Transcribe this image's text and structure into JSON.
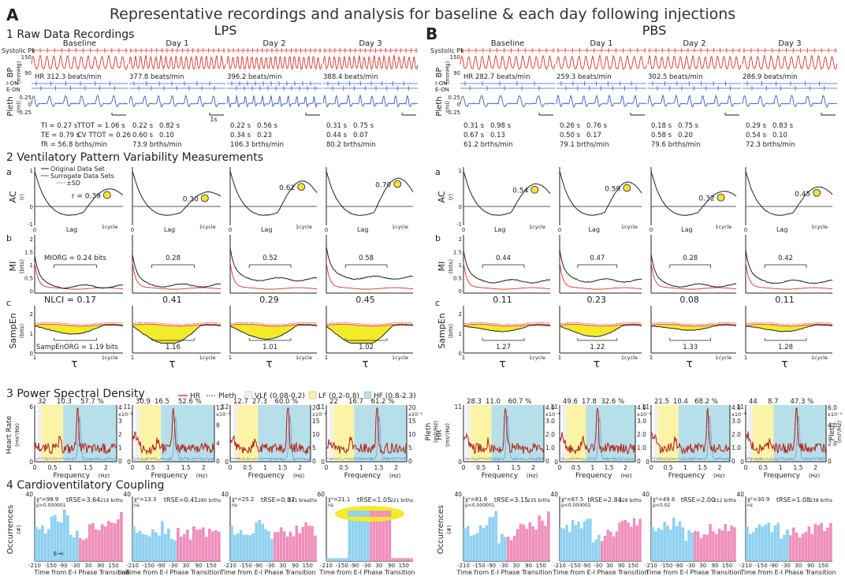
{
  "title": "Representative recordings and analysis for baseline & each day following injections",
  "panelA": "A",
  "panelB": "B",
  "groupA": "LPS",
  "groupB": "PBS",
  "s1": "1 Raw Data Recordings",
  "s2": "2 Ventilatory Pattern Variability Measurements",
  "s3": "3 Power Spectral Density",
  "s4": "4 Cardioventilatory Coupling",
  "days": [
    "Baseline",
    "Day 1",
    "Day 2",
    "Day 3"
  ],
  "raw": {
    "systolic_label": "Systolic Pk",
    "bp_label": "BP",
    "bp_unit": "(mmHg)",
    "bp_ticks": [
      "150",
      "90"
    ],
    "ion_label": "I-ON",
    "eon_label": "E-ON",
    "pleth_label": "Pleth",
    "pleth_unit": "(ml)",
    "pleth_ticks": [
      "0.25",
      "0",
      "-0.25"
    ],
    "scale_bar": "1s",
    "lps_hr": [
      "HR 312.3 beats/min",
      "377.8 beats/min",
      "396.2 beats/min",
      "388.4 beats/min"
    ],
    "pbs_hr": [
      "HR 282.7 beats/min",
      "259.3 beats/min",
      "302.5 beats/min",
      "286.9 beats/min"
    ],
    "lps_params": [
      [
        "TI = 0.27 s",
        "TTOT = 1.06 s",
        "TE = 0.79 s",
        "CV TTOT = 0.26",
        "fR = 56.8 brths/min"
      ],
      [
        "0.22 s",
        "0.82 s",
        "0.60 s",
        "0.10",
        "73.9 brths/min"
      ],
      [
        "0.22 s",
        "0.56 s",
        "0.34 s",
        "0.23",
        "106.3 brths/min"
      ],
      [
        "0.31 s",
        "0.75 s",
        "0.44 s",
        "0.07",
        "80.2 brths/min"
      ]
    ],
    "pbs_params": [
      [
        "0.31 s",
        "0.98 s",
        "0.67 s",
        "0.13",
        "61.2 brths/min"
      ],
      [
        "0.26 s",
        "0.76 s",
        "0.50 s",
        "0.17",
        "79.1 brths/min"
      ],
      [
        "0.18 s",
        "0.75 s",
        "0.58 s",
        "0.20",
        "79.6 brths/min"
      ],
      [
        "0.29 s",
        "0.83 s",
        "0.54 s",
        "0.10",
        "72.3 brths/min"
      ]
    ]
  },
  "vpv": {
    "a": "a",
    "b": "b",
    "c": "c",
    "ac_label": "AC",
    "ac_unit": "(r)",
    "ac_ticks": [
      "1",
      "0",
      "-1"
    ],
    "lag_label": "Lag",
    "cycle_label": "1cycle",
    "legend": [
      "Original Data Set",
      "Surrogate Data Sets",
      "±SD"
    ],
    "lps_ac": [
      "r = 0.39",
      "0.30",
      "0.62",
      "0.70"
    ],
    "pbs_ac": [
      "0.54",
      "0.59",
      "0.32",
      "0.45"
    ],
    "mi_label": "MI",
    "mi_unit": "(bits)",
    "mi_ticks": [
      "2",
      "1.5",
      "1",
      "0.5",
      "0"
    ],
    "lps_mi": [
      "MIORG = 0.24 bits",
      "0.28",
      "0.52",
      "0.58"
    ],
    "pbs_mi": [
      "0.44",
      "0.47",
      "0.28",
      "0.42"
    ],
    "se_label": "SampEn",
    "se_unit": "(bits)",
    "se_ticks": [
      "2",
      "1",
      "0"
    ],
    "tau": "τ",
    "tau_ticks": [
      "1",
      "1cycle"
    ],
    "lps_nlci": [
      "NLCI = 0.17",
      "0.41",
      "0.29",
      "0.45"
    ],
    "pbs_nlci": [
      "0.11",
      "0.23",
      "0.08",
      "0.11"
    ],
    "lps_se": [
      "SampEnORG = 1.19 bits",
      "1.16",
      "1.01",
      "1.02"
    ],
    "pbs_se": [
      "1.27",
      "1.22",
      "1.33",
      "1.28"
    ]
  },
  "psd": {
    "legend": [
      "HR",
      "Pleth",
      "VLF (0.08-0.2)",
      "LF (0.2-0.8)",
      "HF (0.8-2.3)"
    ],
    "hr_label_lps": "Heart Rate",
    "hr_unit_lps": "(ms²/Hz)",
    "hr_label_pbs": "HR",
    "hr_unit_pbs": "(ms²/Hz)",
    "pleth_label": "Pleth",
    "pleth_unit": "(ml²/Hz)",
    "xlabel": "Frequency",
    "xunit": "(Hz)",
    "xticks": [
      "0",
      "0.5",
      "1",
      "1.5",
      "2"
    ],
    "lps_y": [
      "6",
      "11",
      "12",
      "11"
    ],
    "lps_pcts": [
      [
        "32",
        "10.3",
        "57.7 %"
      ],
      [
        "30.9",
        "16.5",
        "52.6 %"
      ],
      [
        "12.7",
        "27.3",
        "60.0 %"
      ],
      [
        "22",
        "16.7",
        "61.2 %"
      ]
    ],
    "lps_right": [
      [
        "4",
        "3",
        "2",
        "1",
        "0"
      ],
      [
        "12",
        "8",
        "4",
        "0"
      ],
      [
        "20",
        "15",
        "10",
        "5",
        "0"
      ],
      [
        "20",
        "15",
        "10",
        "5",
        "0"
      ]
    ],
    "lps_rmult": [
      "x10⁻²",
      "x10⁻²",
      "x10⁻²",
      "x10⁻²"
    ],
    "pbs_y": [
      "11",
      "11",
      "11",
      "11"
    ],
    "pbs_pcts": [
      [
        "28.3",
        "11.0",
        "60.7 %"
      ],
      [
        "49.6",
        "17.8",
        "32.6 %"
      ],
      [
        "21.5",
        "10.4",
        "68.2 %"
      ],
      [
        "44",
        "8.7",
        "47.3 %"
      ]
    ],
    "pbs_right": [
      [
        "4.0",
        "3.0",
        "2.0",
        "1.0",
        "0"
      ],
      [
        "4.0",
        "3.0",
        "2.0",
        "1.0",
        "0"
      ],
      [
        "4.0",
        "3.0",
        "2.0",
        "1.0",
        "0"
      ],
      [
        "6.0",
        "4.0",
        "2.0",
        "0"
      ]
    ],
    "pbs_rmult": [
      "x10⁻⁴",
      "x10⁻⁴",
      "x10⁻⁴",
      "x10⁻⁴"
    ]
  },
  "cvc": {
    "ylabel": "Occurrences",
    "yunit": "(#)",
    "xlabel": "Time from E-I Phase Transition",
    "xunit": "(ms)",
    "xticks": [
      "-210",
      "-150",
      "-90",
      "-30",
      "30",
      "90",
      "150"
    ],
    "ei_arrow": "E→I",
    "lps": [
      {
        "chi": "χ²=99.9",
        "p": "p>0.000001",
        "trse": "tRSE=3.64",
        "n": "216 brths",
        "ymax": "40"
      },
      {
        "chi": "χ²=13.3",
        "p": "ns",
        "trse": "tRSE=0.41",
        "n": "280 brths",
        "ymax": "40"
      },
      {
        "chi": "χ²=25.2",
        "p": "ns",
        "trse": "tRSE=0.87",
        "n": "241 breaths",
        "ymax": "40"
      },
      {
        "chi": "χ²=21.1",
        "p": "ns",
        "trse": "tRSE=1.05",
        "n": "221 brths",
        "ymax": "60"
      }
    ],
    "pbs": [
      {
        "chi": "χ²=81.6",
        "p": "p<0.000001",
        "trse": "tRSE=3.15",
        "n": "235 brths",
        "ymax": "40"
      },
      {
        "chi": "χ²=67.5",
        "p": "p<0.000001",
        "trse": "tRSE=2.84",
        "n": "228 brths",
        "ymax": "40"
      },
      {
        "chi": "χ²=49.6",
        "p": "p<0.02",
        "trse": "tRSE=2.00",
        "n": "212 brths",
        "ymax": "40"
      },
      {
        "chi": "χ²=30.9",
        "p": "ns",
        "trse": "tRSE=1.08",
        "n": "238 brths",
        "ymax": "40"
      }
    ]
  },
  "chart_data": [
    {
      "type": "line",
      "title": "AC LPS",
      "series": [
        {
          "name": "Original Data Set",
          "peak_r": [
            0.39,
            0.3,
            0.62,
            0.7
          ]
        }
      ],
      "ylim": [
        -1,
        1
      ]
    },
    {
      "type": "line",
      "title": "AC PBS",
      "series": [
        {
          "name": "Original Data Set",
          "peak_r": [
            0.54,
            0.59,
            0.32,
            0.45
          ]
        }
      ],
      "ylim": [
        -1,
        1
      ]
    },
    {
      "type": "line",
      "title": "MI",
      "ylim": [
        0,
        2
      ],
      "series": [
        {
          "name": "LPS MIORG",
          "values": [
            0.24,
            0.28,
            0.52,
            0.58
          ]
        },
        {
          "name": "PBS MIORG",
          "values": [
            0.44,
            0.47,
            0.28,
            0.42
          ]
        }
      ]
    },
    {
      "type": "area",
      "title": "SampEn",
      "ylim": [
        0,
        2
      ],
      "series": [
        {
          "name": "LPS NLCI",
          "values": [
            0.17,
            0.41,
            0.29,
            0.45
          ]
        },
        {
          "name": "PBS NLCI",
          "values": [
            0.11,
            0.23,
            0.08,
            0.11
          ]
        },
        {
          "name": "LPS SampEnORG",
          "values": [
            1.19,
            1.16,
            1.01,
            1.02
          ]
        },
        {
          "name": "PBS SampEnORG",
          "values": [
            1.27,
            1.22,
            1.33,
            1.28
          ]
        }
      ]
    },
    {
      "type": "line",
      "title": "Power Spectral Density",
      "xlim": [
        0,
        2.3
      ],
      "bands": {
        "VLF": [
          0.08,
          0.2
        ],
        "LF": [
          0.2,
          0.8
        ],
        "HF": [
          0.8,
          2.3
        ]
      }
    },
    {
      "type": "bar",
      "title": "Cardioventilatory Coupling",
      "xlim": [
        -210,
        210
      ],
      "series": [
        {
          "name": "LPS tRSE",
          "values": [
            3.64,
            0.41,
            0.87,
            1.05
          ]
        },
        {
          "name": "PBS tRSE",
          "values": [
            3.15,
            2.84,
            2.0,
            1.08
          ]
        }
      ]
    }
  ]
}
